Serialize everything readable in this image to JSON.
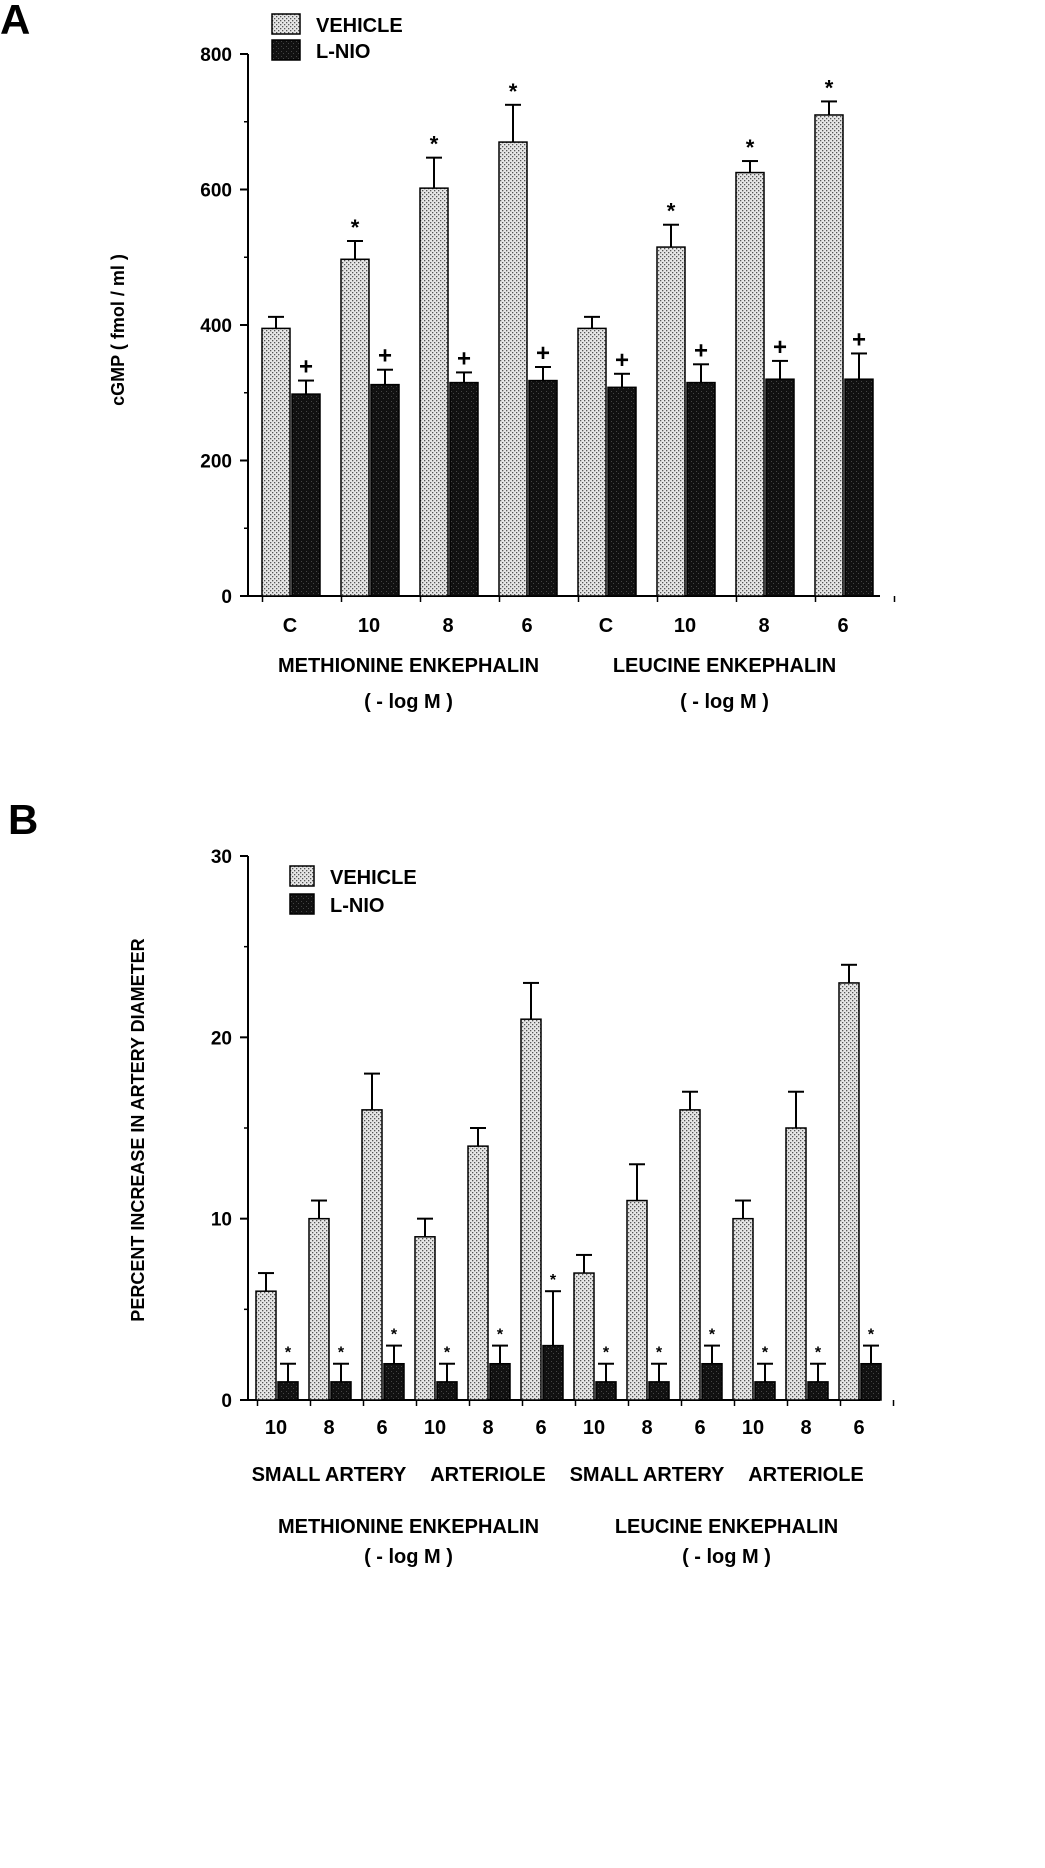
{
  "colors": {
    "vehicle": "#dcdcdc",
    "lnio": "#111111",
    "axis": "#000000"
  },
  "chart_data": [
    {
      "panel": "A",
      "type": "bar",
      "ylabel": "cGMP ( fmol / ml )",
      "ylim": [
        0,
        800
      ],
      "yticks": [
        0,
        200,
        400,
        600,
        800
      ],
      "legend": [
        "VEHICLE",
        "L-NIO"
      ],
      "legend_position": "top-left",
      "categories": [
        "C",
        "10",
        "8",
        "6",
        "C",
        "10",
        "8",
        "6"
      ],
      "group_labels": [
        {
          "lines": [
            "METHIONINE ENKEPHALIN",
            "( - log M )"
          ],
          "span": [
            0,
            3
          ]
        },
        {
          "lines": [
            "LEUCINE ENKEPHALIN",
            "( - log M )"
          ],
          "span": [
            4,
            7
          ]
        }
      ],
      "series": [
        {
          "name": "VEHICLE",
          "values": [
            395,
            497,
            602,
            670,
            395,
            515,
            625,
            710
          ],
          "errors": [
            17,
            27,
            45,
            55,
            17,
            33,
            17,
            20
          ],
          "markers": [
            "",
            "*",
            "*",
            "*",
            "",
            "*",
            "*",
            "*"
          ]
        },
        {
          "name": "L-NIO",
          "values": [
            298,
            312,
            315,
            318,
            308,
            315,
            320,
            320
          ],
          "errors": [
            20,
            22,
            15,
            20,
            20,
            27,
            27,
            38
          ],
          "markers": [
            "+",
            "+",
            "+",
            "+",
            "+",
            "+",
            "+",
            "+"
          ]
        }
      ]
    },
    {
      "panel": "B",
      "type": "bar",
      "ylabel": "PERCENT INCREASE IN ARTERY DIAMETER",
      "ylim": [
        0,
        30
      ],
      "yticks": [
        0,
        10,
        20,
        30
      ],
      "legend": [
        "VEHICLE",
        "L-NIO"
      ],
      "legend_position": "top-left",
      "categories": [
        "10",
        "8",
        "6",
        "10",
        "8",
        "6",
        "10",
        "8",
        "6",
        "10",
        "8",
        "6"
      ],
      "group_labels": [
        {
          "lines": [
            "SMALL ARTERY"
          ],
          "span": [
            0,
            2
          ]
        },
        {
          "lines": [
            "ARTERIOLE"
          ],
          "span": [
            3,
            5
          ]
        },
        {
          "lines": [
            "SMALL ARTERY"
          ],
          "span": [
            6,
            8
          ]
        },
        {
          "lines": [
            "ARTERIOLE"
          ],
          "span": [
            9,
            11
          ]
        },
        {
          "lines": [
            "METHIONINE ENKEPHALIN",
            "( - log M )"
          ],
          "span": [
            0,
            5
          ]
        },
        {
          "lines": [
            "LEUCINE ENKEPHALIN",
            "( - log M )"
          ],
          "span": [
            6,
            11
          ]
        }
      ],
      "series": [
        {
          "name": "VEHICLE",
          "values": [
            6,
            10,
            16,
            9,
            14,
            21,
            7,
            11,
            16,
            10,
            15,
            23
          ],
          "errors": [
            1,
            1,
            2,
            1,
            1,
            2,
            1,
            2,
            1,
            1,
            2,
            1
          ],
          "markers": [
            "",
            "",
            "",
            "",
            "",
            "",
            "",
            "",
            "",
            "",
            "",
            ""
          ]
        },
        {
          "name": "L-NIO",
          "values": [
            1,
            1,
            2,
            1,
            2,
            3,
            1,
            1,
            2,
            1,
            1,
            2
          ],
          "errors": [
            1,
            1,
            1,
            1,
            1,
            3,
            1,
            1,
            1,
            1,
            1,
            1
          ],
          "markers": [
            "*",
            "*",
            "*",
            "*",
            "*",
            "*",
            "*",
            "*",
            "*",
            "*",
            "*",
            "*"
          ]
        }
      ]
    }
  ]
}
